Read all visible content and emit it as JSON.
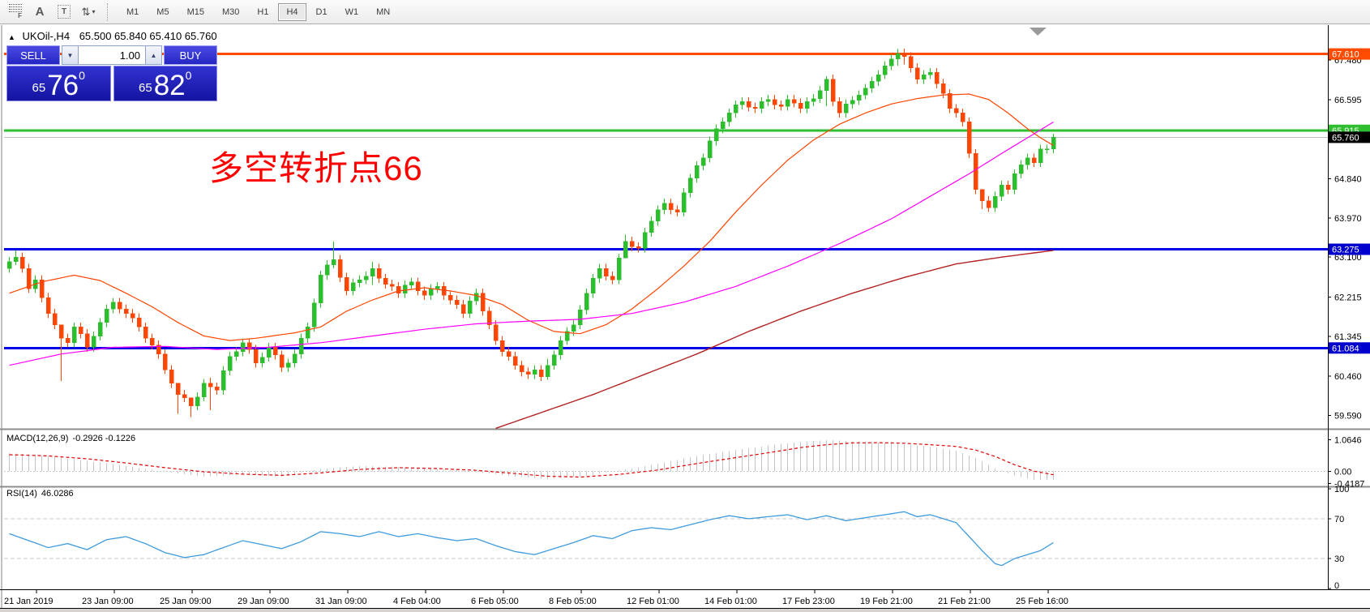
{
  "toolbar": {
    "icons": {
      "fibo_glyph": "F",
      "label_glyph": "A",
      "text_glyph": "T",
      "arrows_glyph": "⇅",
      "dropdown_glyph": "▾"
    },
    "timeframes": [
      "M1",
      "M5",
      "M15",
      "M30",
      "H1",
      "H4",
      "D1",
      "W1",
      "MN"
    ],
    "active_timeframe": "H4"
  },
  "chart_header": {
    "collapse_glyph": "▲",
    "symbol": "UKOil-,H4",
    "ohlc": "65.500 65.840 65.410 65.760"
  },
  "trade_panel": {
    "sell_label": "SELL",
    "buy_label": "BUY",
    "volume": "1.00",
    "spinner_down_glyph": "▼",
    "spinner_up_glyph": "▲",
    "sell_price": {
      "prefix": "65",
      "big": "76",
      "sup": "0"
    },
    "buy_price": {
      "prefix": "65",
      "big": "82",
      "sup": "0"
    }
  },
  "annotation": {
    "text": "多空转折点66",
    "color": "#FF0000"
  },
  "indicators": {
    "macd": {
      "label": "MACD(12,26,9)",
      "values": "-0.2926 -0.1226"
    },
    "rsi": {
      "label": "RSI(14)",
      "value": "46.0286"
    }
  },
  "chart_data": {
    "type": "candlestick",
    "symbol": "UKOil-",
    "timeframe": "H4",
    "last_ohlc": {
      "open": 65.5,
      "high": 65.84,
      "low": 65.41,
      "close": 65.76
    },
    "ylim_main": [
      59.29,
      68.25
    ],
    "x_labels": [
      "21 Jan 2019",
      "23 Jan 09:00",
      "25 Jan 09:00",
      "29 Jan 09:00",
      "31 Jan 09:00",
      "4 Feb 04:00",
      "6 Feb 05:00",
      "8 Feb 05:00",
      "12 Feb 01:00",
      "14 Feb 01:00",
      "17 Feb 23:00",
      "19 Feb 21:00",
      "21 Feb 21:00",
      "25 Feb 16:00"
    ],
    "candles_per_label": 12,
    "candles": {
      "first_open": 62.85,
      "open_rule": "previous_close",
      "default_wick": 0.1,
      "closes": [
        63.0,
        63.1,
        62.85,
        62.4,
        62.6,
        62.2,
        61.85,
        61.6,
        61.3,
        61.2,
        61.55,
        61.4,
        61.1,
        61.35,
        61.65,
        61.95,
        62.1,
        61.95,
        61.85,
        61.75,
        61.55,
        61.3,
        61.15,
        60.95,
        60.6,
        60.3,
        60.05,
        59.98,
        59.8,
        60.0,
        60.3,
        60.22,
        60.15,
        60.58,
        60.9,
        61.0,
        61.2,
        61.05,
        60.75,
        60.88,
        61.1,
        60.93,
        60.65,
        60.75,
        60.95,
        61.3,
        61.55,
        62.08,
        62.7,
        62.93,
        63.05,
        62.65,
        62.35,
        62.53,
        62.6,
        62.68,
        62.85,
        62.63,
        62.5,
        62.45,
        62.3,
        62.48,
        62.55,
        62.35,
        62.25,
        62.4,
        62.45,
        62.25,
        62.15,
        62.05,
        61.85,
        62.13,
        62.3,
        61.9,
        61.6,
        61.25,
        61.0,
        60.9,
        60.7,
        60.55,
        60.5,
        60.6,
        60.45,
        60.7,
        60.93,
        61.25,
        61.45,
        61.6,
        61.93,
        62.3,
        62.63,
        62.85,
        62.68,
        62.6,
        63.08,
        63.45,
        63.33,
        63.3,
        63.65,
        63.9,
        64.15,
        64.3,
        64.15,
        64.1,
        64.53,
        64.85,
        65.13,
        65.3,
        65.68,
        65.95,
        66.1,
        66.3,
        66.48,
        66.55,
        66.43,
        66.4,
        66.55,
        66.6,
        66.48,
        66.45,
        66.6,
        66.52,
        66.4,
        66.55,
        66.62,
        66.8,
        67.05,
        66.55,
        66.3,
        66.5,
        66.58,
        66.7,
        66.85,
        67.0,
        67.15,
        67.35,
        67.5,
        67.62,
        67.55,
        67.3,
        67.05,
        67.15,
        67.2,
        66.95,
        66.73,
        66.4,
        66.3,
        66.1,
        65.4,
        64.6,
        64.35,
        64.2,
        64.45,
        64.7,
        64.6,
        64.95,
        65.15,
        65.3,
        65.2,
        65.5,
        65.5,
        65.76
      ],
      "wick_overrides": {
        "1": [
          63.25,
          62.92
        ],
        "8": [
          61.4,
          60.35
        ],
        "26": [
          60.2,
          59.62
        ],
        "28": [
          59.95,
          59.55
        ],
        "31": [
          60.42,
          59.7
        ],
        "50": [
          63.45,
          62.85
        ],
        "56": [
          63.0,
          62.48
        ],
        "83": [
          60.85,
          60.38
        ],
        "95": [
          63.6,
          63.2
        ],
        "126": [
          67.12,
          66.45
        ],
        "137": [
          67.72,
          67.35
        ],
        "138": [
          67.73,
          67.38
        ],
        "150": [
          64.6,
          64.17
        ],
        "161": [
          65.84,
          65.41
        ]
      }
    },
    "moving_averages": [
      {
        "name": "ma-fast",
        "color": "#FF4500",
        "width": 1.2,
        "points": [
          [
            0,
            62.3
          ],
          [
            5,
            62.55
          ],
          [
            10,
            62.7
          ],
          [
            14,
            62.58
          ],
          [
            18,
            62.3
          ],
          [
            22,
            62.0
          ],
          [
            26,
            61.65
          ],
          [
            30,
            61.35
          ],
          [
            34,
            61.25
          ],
          [
            38,
            61.3
          ],
          [
            44,
            61.42
          ],
          [
            48,
            61.55
          ],
          [
            52,
            61.9
          ],
          [
            56,
            62.15
          ],
          [
            60,
            62.35
          ],
          [
            64,
            62.42
          ],
          [
            68,
            62.35
          ],
          [
            72,
            62.25
          ],
          [
            76,
            62.05
          ],
          [
            80,
            61.7
          ],
          [
            84,
            61.45
          ],
          [
            88,
            61.4
          ],
          [
            92,
            61.6
          ],
          [
            96,
            61.95
          ],
          [
            100,
            62.4
          ],
          [
            104,
            62.9
          ],
          [
            108,
            63.45
          ],
          [
            112,
            64.1
          ],
          [
            116,
            64.7
          ],
          [
            120,
            65.25
          ],
          [
            124,
            65.7
          ],
          [
            128,
            66.05
          ],
          [
            132,
            66.3
          ],
          [
            136,
            66.5
          ],
          [
            140,
            66.62
          ],
          [
            144,
            66.7
          ],
          [
            148,
            66.72
          ],
          [
            151,
            66.6
          ],
          [
            154,
            66.3
          ],
          [
            157,
            65.95
          ],
          [
            159,
            65.75
          ],
          [
            161,
            65.58
          ]
        ]
      },
      {
        "name": "ma-mid",
        "color": "#FF00FF",
        "width": 1.2,
        "points": [
          [
            0,
            60.7
          ],
          [
            8,
            60.95
          ],
          [
            16,
            61.1
          ],
          [
            24,
            61.12
          ],
          [
            32,
            61.05
          ],
          [
            40,
            61.1
          ],
          [
            48,
            61.2
          ],
          [
            56,
            61.35
          ],
          [
            64,
            61.5
          ],
          [
            72,
            61.62
          ],
          [
            80,
            61.68
          ],
          [
            88,
            61.72
          ],
          [
            96,
            61.85
          ],
          [
            104,
            62.1
          ],
          [
            112,
            62.45
          ],
          [
            120,
            62.9
          ],
          [
            128,
            63.4
          ],
          [
            136,
            63.95
          ],
          [
            142,
            64.45
          ],
          [
            148,
            64.95
          ],
          [
            153,
            65.4
          ],
          [
            157,
            65.75
          ],
          [
            161,
            66.1
          ]
        ]
      },
      {
        "name": "ma-slow",
        "color": "#B22222",
        "width": 1.4,
        "points": [
          [
            75,
            59.3
          ],
          [
            82,
            59.65
          ],
          [
            90,
            60.05
          ],
          [
            98,
            60.5
          ],
          [
            106,
            60.95
          ],
          [
            114,
            61.45
          ],
          [
            122,
            61.9
          ],
          [
            130,
            62.3
          ],
          [
            138,
            62.65
          ],
          [
            146,
            62.95
          ],
          [
            153,
            63.1
          ],
          [
            161,
            63.25
          ]
        ]
      }
    ],
    "hlines": [
      {
        "price": 67.61,
        "color": "#FF4B00",
        "width": 3,
        "badge": "67.610",
        "badge_color": "#FF4B00"
      },
      {
        "price": 65.915,
        "color": "#2FBE2F",
        "width": 3,
        "badge": "65.915",
        "badge_color": "#2FBE2F"
      },
      {
        "price": 65.76,
        "color": "#BDBDBD",
        "width": 1,
        "badge": "65.760",
        "badge_color": "#000000"
      },
      {
        "price": 63.275,
        "color": "#0000E6",
        "width": 3,
        "badge": "63.275",
        "badge_color": "#0000CD"
      },
      {
        "price": 61.084,
        "color": "#0000E6",
        "width": 3,
        "badge": "61.084",
        "badge_color": "#0000CD"
      }
    ],
    "price_ticks": [
      {
        "text": "67.480",
        "value": 67.48
      },
      {
        "text": "66.595",
        "value": 66.595
      },
      {
        "text": "64.840",
        "value": 64.84
      },
      {
        "text": "63.970",
        "value": 63.97
      },
      {
        "text": "63.100",
        "value": 63.1
      },
      {
        "text": "62.215",
        "value": 62.215
      },
      {
        "text": "61.345",
        "value": 61.345
      },
      {
        "text": "60.460",
        "value": 60.46
      },
      {
        "text": "59.590",
        "value": 59.59
      }
    ],
    "macd_panel": {
      "ylim": [
        1.33,
        -0.46
      ],
      "hist_color": "#C4C4C4",
      "signal_color": "#E00000",
      "axis_labels": [
        {
          "text": "1.0646",
          "value": 1.0646
        },
        {
          "text": "0.00",
          "value": 0.0
        },
        {
          "text": "-0.4187",
          "value": -0.4187
        }
      ],
      "points": [
        [
          0,
          0.62,
          0.56
        ],
        [
          6,
          0.52,
          0.52
        ],
        [
          12,
          0.35,
          0.42
        ],
        [
          18,
          0.18,
          0.28
        ],
        [
          24,
          -0.02,
          0.12
        ],
        [
          30,
          -0.18,
          -0.02
        ],
        [
          36,
          -0.1,
          -0.1
        ],
        [
          42,
          -0.18,
          -0.14
        ],
        [
          48,
          0.08,
          -0.06
        ],
        [
          54,
          0.18,
          0.06
        ],
        [
          60,
          0.15,
          0.12
        ],
        [
          66,
          0.07,
          0.09
        ],
        [
          72,
          -0.03,
          0.03
        ],
        [
          78,
          -0.18,
          -0.08
        ],
        [
          83,
          -0.27,
          -0.17
        ],
        [
          88,
          -0.18,
          -0.2
        ],
        [
          94,
          0.02,
          -0.11
        ],
        [
          100,
          0.25,
          0.04
        ],
        [
          106,
          0.52,
          0.26
        ],
        [
          112,
          0.72,
          0.46
        ],
        [
          118,
          0.9,
          0.66
        ],
        [
          122,
          1.0,
          0.8
        ],
        [
          126,
          1.06,
          0.9
        ],
        [
          130,
          1.02,
          0.96
        ],
        [
          134,
          0.97,
          0.97
        ],
        [
          138,
          0.92,
          0.95
        ],
        [
          142,
          0.84,
          0.9
        ],
        [
          146,
          0.7,
          0.84
        ],
        [
          149,
          0.45,
          0.72
        ],
        [
          152,
          0.1,
          0.5
        ],
        [
          155,
          -0.15,
          0.22
        ],
        [
          158,
          -0.3,
          0.0
        ],
        [
          161,
          -0.29,
          -0.12
        ]
      ]
    },
    "rsi_panel": {
      "ylim": [
        100,
        0
      ],
      "line_color": "#3E9BDE",
      "levels": [
        70,
        30
      ],
      "axis_labels": [
        {
          "text": "100",
          "value": 100
        },
        {
          "text": "70",
          "value": 70
        },
        {
          "text": "30",
          "value": 30
        },
        {
          "text": "0",
          "value": 0
        }
      ],
      "points": [
        [
          0,
          55
        ],
        [
          3,
          48
        ],
        [
          6,
          41
        ],
        [
          9,
          45
        ],
        [
          12,
          39
        ],
        [
          15,
          49
        ],
        [
          18,
          52
        ],
        [
          21,
          45
        ],
        [
          24,
          36
        ],
        [
          27,
          31
        ],
        [
          30,
          34
        ],
        [
          33,
          41
        ],
        [
          36,
          48
        ],
        [
          39,
          44
        ],
        [
          42,
          40
        ],
        [
          45,
          47
        ],
        [
          48,
          57
        ],
        [
          51,
          55
        ],
        [
          54,
          52
        ],
        [
          57,
          57
        ],
        [
          60,
          52
        ],
        [
          63,
          55
        ],
        [
          66,
          51
        ],
        [
          69,
          48
        ],
        [
          72,
          50
        ],
        [
          75,
          43
        ],
        [
          78,
          37
        ],
        [
          81,
          34
        ],
        [
          84,
          40
        ],
        [
          87,
          46
        ],
        [
          90,
          53
        ],
        [
          93,
          50
        ],
        [
          96,
          58
        ],
        [
          99,
          61
        ],
        [
          102,
          59
        ],
        [
          105,
          64
        ],
        [
          108,
          69
        ],
        [
          111,
          73
        ],
        [
          114,
          70
        ],
        [
          117,
          72
        ],
        [
          120,
          74
        ],
        [
          123,
          69
        ],
        [
          126,
          73
        ],
        [
          129,
          68
        ],
        [
          132,
          71
        ],
        [
          135,
          74
        ],
        [
          138,
          77
        ],
        [
          140,
          72
        ],
        [
          142,
          74
        ],
        [
          144,
          70
        ],
        [
          146,
          66
        ],
        [
          148,
          52
        ],
        [
          150,
          38
        ],
        [
          152,
          25
        ],
        [
          153,
          23
        ],
        [
          155,
          30
        ],
        [
          157,
          34
        ],
        [
          159,
          38
        ],
        [
          161,
          46
        ]
      ]
    },
    "colors": {
      "bull": "#2DBE2D",
      "bear": "#FF4500"
    }
  }
}
